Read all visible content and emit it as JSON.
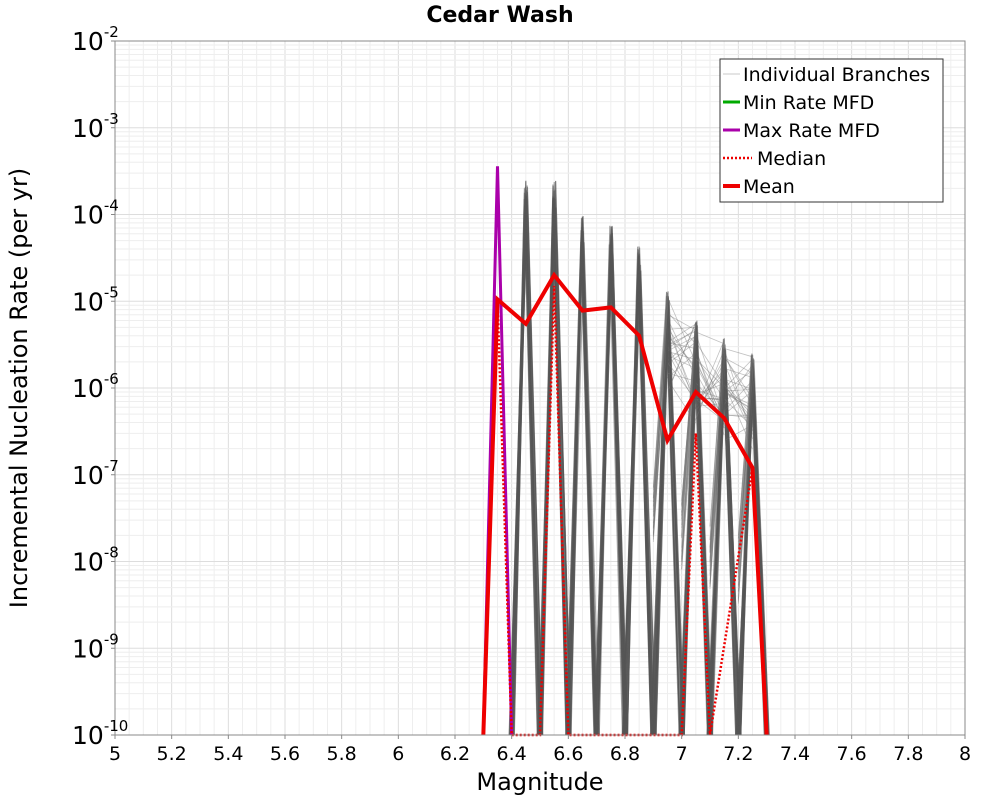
{
  "chart_data": {
    "type": "line",
    "title": "Cedar Wash",
    "xlabel": "Magnitude",
    "ylabel": "Incremental Nucleation Rate (per yr)",
    "xlim": [
      5,
      8
    ],
    "ylim": [
      1e-10,
      0.01
    ],
    "yscale": "log",
    "grid": true,
    "legend_position": "top-right",
    "x_ticks": [
      "5",
      "5.2",
      "5.4",
      "5.6",
      "5.8",
      "6",
      "6.2",
      "6.4",
      "6.6",
      "6.8",
      "7",
      "7.2",
      "7.4",
      "7.6",
      "7.8",
      "8"
    ],
    "y_ticks": [
      {
        "base": "10",
        "exp": "-10",
        "value": 1e-10
      },
      {
        "base": "10",
        "exp": "-9",
        "value": 1e-09
      },
      {
        "base": "10",
        "exp": "-8",
        "value": 1e-08
      },
      {
        "base": "10",
        "exp": "-7",
        "value": 1e-07
      },
      {
        "base": "10",
        "exp": "-6",
        "value": 1e-06
      },
      {
        "base": "10",
        "exp": "-5",
        "value": 1e-05
      },
      {
        "base": "10",
        "exp": "-4",
        "value": 0.0001
      },
      {
        "base": "10",
        "exp": "-3",
        "value": 0.001
      },
      {
        "base": "10",
        "exp": "-2",
        "value": 0.01
      }
    ],
    "legend": [
      {
        "label": "Individual Branches",
        "color": "#c8c8c8",
        "style": "thin"
      },
      {
        "label": "Min Rate MFD",
        "color": "#00aa00",
        "style": "solid"
      },
      {
        "label": "Max Rate MFD",
        "color": "#aa00aa",
        "style": "solid"
      },
      {
        "label": "Median",
        "color": "#ee0000",
        "style": "dotted"
      },
      {
        "label": "Mean",
        "color": "#ee0000",
        "style": "thick"
      }
    ],
    "branch_peaks": [
      {
        "x": 6.45,
        "ymax": 0.00025,
        "ymin": 3e-07
      },
      {
        "x": 6.55,
        "ymax": 0.00025,
        "ymin": 3e-07
      },
      {
        "x": 6.65,
        "ymax": 0.0001,
        "ymin": 3e-07
      },
      {
        "x": 6.75,
        "ymax": 8e-05,
        "ymin": 3e-07
      },
      {
        "x": 6.85,
        "ymax": 4.5e-05,
        "ymin": 2e-07
      },
      {
        "x": 6.95,
        "ymax": 1.5e-05,
        "ymin": 1e-07
      },
      {
        "x": 7.05,
        "ymax": 6e-06,
        "ymin": 5e-08
      },
      {
        "x": 7.15,
        "ymax": 4e-06,
        "ymin": 3e-08
      },
      {
        "x": 7.25,
        "ymax": 2.5e-06,
        "ymin": 2e-08
      }
    ],
    "series": [
      {
        "name": "Max Rate MFD",
        "color": "#aa00aa",
        "x": [
          6.3,
          6.35,
          6.4
        ],
        "y": [
          1e-10,
          0.00036,
          1e-10
        ]
      },
      {
        "name": "Min Rate MFD",
        "color": "#00aa00",
        "x": [
          6.35
        ],
        "y": [
          1e-10
        ]
      },
      {
        "name": "Median",
        "color": "#ee0000",
        "x": [
          6.3,
          6.35,
          6.4,
          6.5,
          6.55,
          6.6,
          7.0,
          7.05,
          7.1,
          7.25,
          7.3
        ],
        "y": [
          1e-10,
          1e-05,
          1e-10,
          1e-10,
          1.5e-05,
          1e-10,
          1e-10,
          3e-07,
          1e-10,
          1.2e-07,
          1e-10
        ]
      },
      {
        "name": "Mean",
        "color": "#ee0000",
        "x": [
          6.3,
          6.35,
          6.45,
          6.55,
          6.65,
          6.75,
          6.85,
          6.95,
          7.05,
          7.15,
          7.25,
          7.3
        ],
        "y": [
          1e-10,
          1.05e-05,
          5.5e-06,
          2e-05,
          7.8e-06,
          8.5e-06,
          4e-06,
          2.5e-07,
          9e-07,
          4.5e-07,
          1.2e-07,
          1e-10
        ]
      }
    ]
  }
}
